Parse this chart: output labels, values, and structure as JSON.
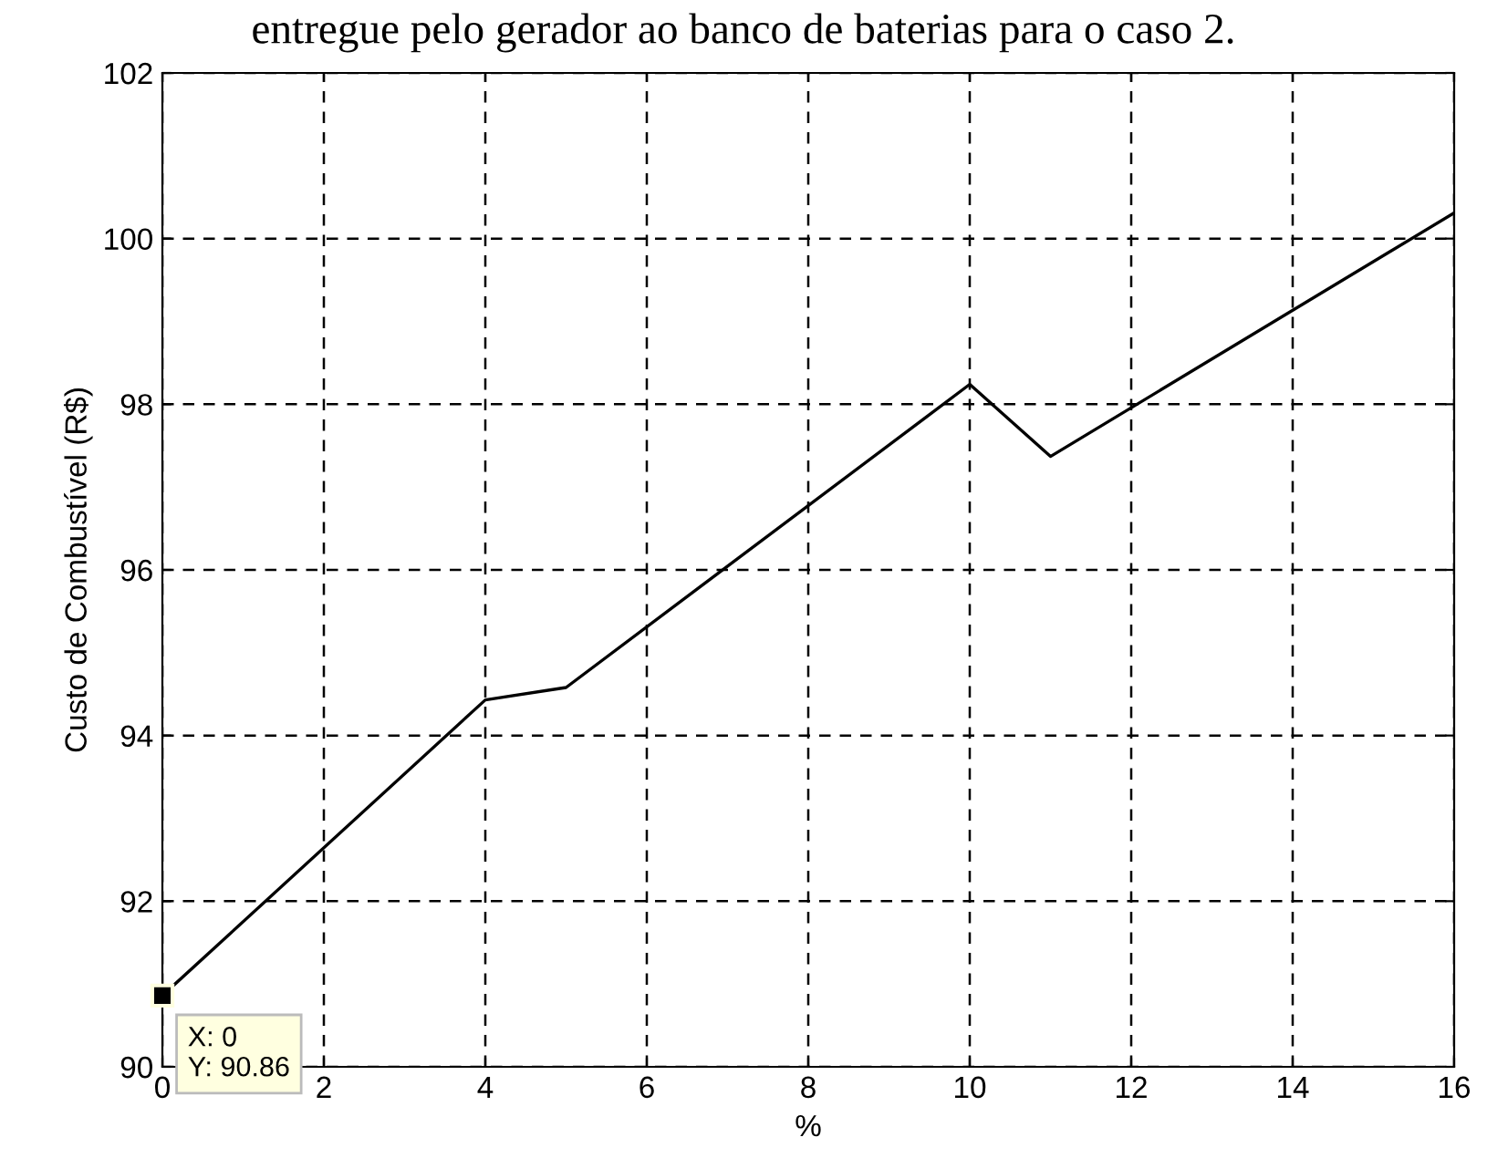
{
  "chart_data": {
    "type": "line",
    "title": "entregue pelo gerador ao banco de baterias para o caso 2.",
    "xlabel": "%",
    "ylabel": "Custo de Combustível (R$)",
    "x": [
      0,
      4,
      5,
      10,
      11,
      16
    ],
    "series": [
      {
        "color": "#000000",
        "values": [
          90.86,
          94.43,
          94.58,
          98.24,
          97.37,
          100.31
        ]
      }
    ],
    "xlim": [
      0,
      16
    ],
    "xticks": [
      0,
      2,
      4,
      6,
      8,
      10,
      12,
      14,
      16
    ],
    "ylim": [
      90,
      102
    ],
    "yticks": [
      90,
      92,
      94,
      96,
      98,
      100,
      102
    ],
    "grid": true,
    "marker": "none",
    "line_style": "solid",
    "annotations": [
      {
        "text": "X: 0\nY: 90.86",
        "x": 0,
        "y": 90.86
      }
    ]
  }
}
